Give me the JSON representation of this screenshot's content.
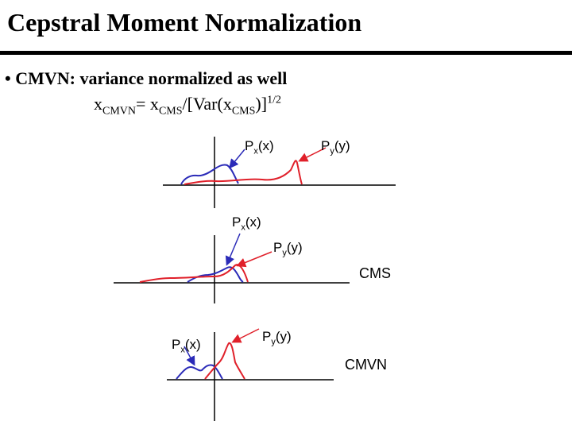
{
  "title": "Cepstral Moment Normalization",
  "bullet": "• CMVN: variance normalized as well",
  "formula": {
    "lhs_var": "x",
    "lhs_sub": "CMVN",
    "eq": "= x",
    "cms_sub_1": "CMS",
    "div": "/[Var(x",
    "cms_sub_2": "CMS",
    "close": ")]",
    "exponent": "1/2"
  },
  "labels": {
    "p": "P",
    "sub_x": "x",
    "sub_y": "y",
    "arg_x": "(x)",
    "arg_y": "(y)"
  },
  "tags": {
    "cms": "CMS",
    "cmvn": "CMVN"
  },
  "colors": {
    "px_curve": "#2b2bb8",
    "py_curve": "#e0202a",
    "axis": "#000000"
  }
}
